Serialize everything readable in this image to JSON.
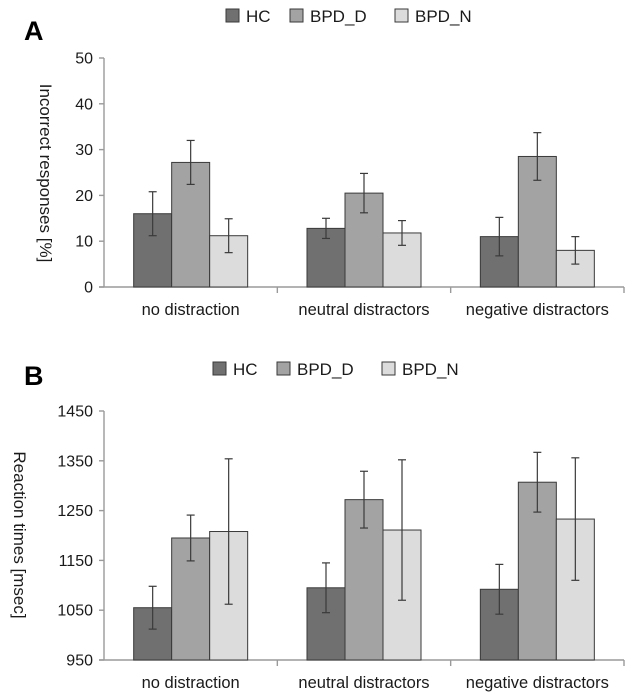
{
  "chart_data": [
    {
      "panel": "A",
      "type": "bar",
      "categories": [
        "no distraction",
        "neutral distractors",
        "negative distractors"
      ],
      "series": [
        {
          "name": "HC",
          "values": [
            16.0,
            12.8,
            11.0
          ],
          "error": [
            4.8,
            2.2,
            4.2
          ],
          "color": "#707070"
        },
        {
          "name": "BPD_D",
          "values": [
            27.2,
            20.5,
            28.5
          ],
          "error": [
            4.8,
            4.3,
            5.2
          ],
          "color": "#a3a3a3"
        },
        {
          "name": "BPD_N",
          "values": [
            11.2,
            11.8,
            8.0
          ],
          "error": [
            3.7,
            2.7,
            3.0
          ],
          "color": "#dcdcdc"
        }
      ],
      "ylabel": "Incorrect responses [%]",
      "ylim": [
        0,
        50
      ],
      "yticks": [
        0,
        10,
        20,
        30,
        40,
        50
      ],
      "legend": "top-center",
      "grid": false
    },
    {
      "panel": "B",
      "type": "bar",
      "categories": [
        "no distraction",
        "neutral distractors",
        "negative distractors"
      ],
      "series": [
        {
          "name": "HC",
          "values": [
            1055,
            1095,
            1092
          ],
          "error": [
            43,
            50,
            50
          ],
          "color": "#707070"
        },
        {
          "name": "BPD_D",
          "values": [
            1195,
            1272,
            1307
          ],
          "error": [
            46,
            57,
            60
          ],
          "color": "#a3a3a3"
        },
        {
          "name": "BPD_N",
          "values": [
            1208,
            1211,
            1233
          ],
          "error": [
            146,
            141,
            123
          ],
          "color": "#dcdcdc"
        }
      ],
      "ylabel": "Reaction times [msec]",
      "ylim": [
        950,
        1450
      ],
      "yticks": [
        950,
        1050,
        1150,
        1250,
        1350,
        1450
      ],
      "legend": "top-center",
      "grid": false
    }
  ]
}
